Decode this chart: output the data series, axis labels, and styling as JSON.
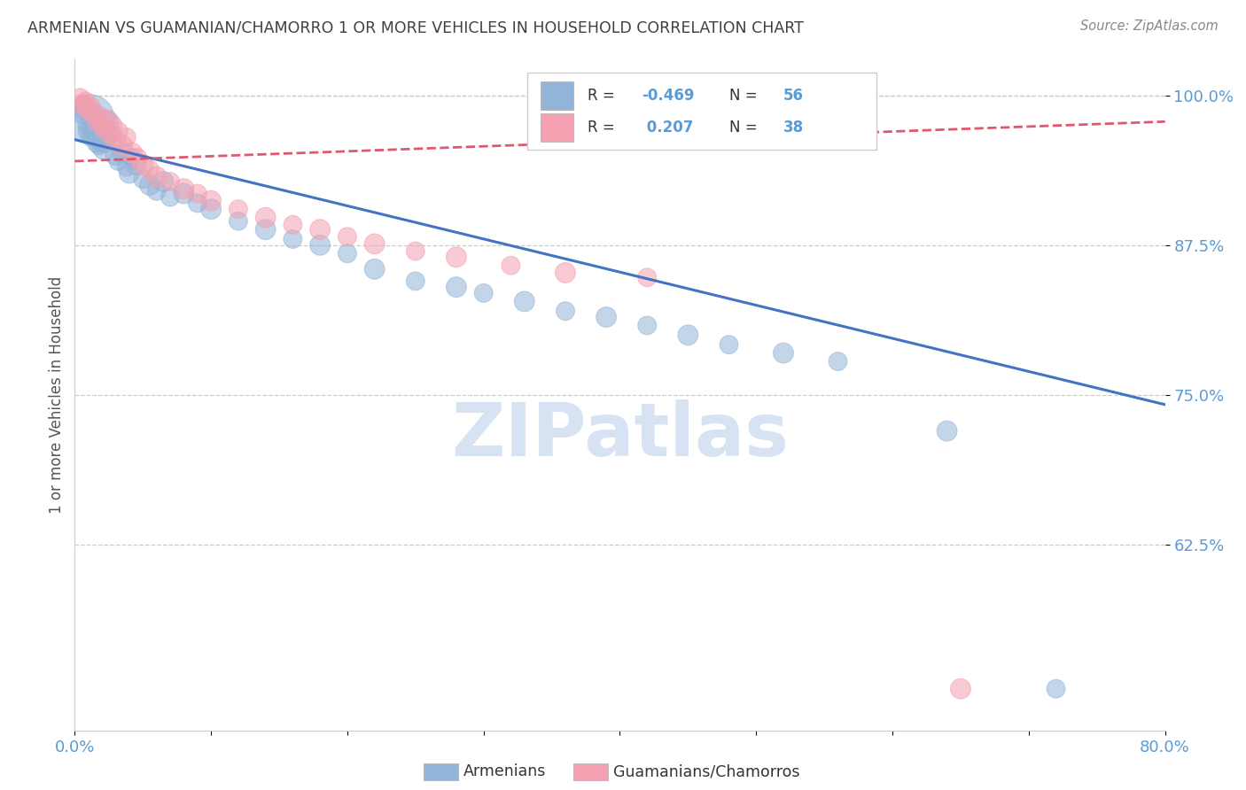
{
  "title": "ARMENIAN VS GUAMANIAN/CHAMORRO 1 OR MORE VEHICLES IN HOUSEHOLD CORRELATION CHART",
  "source": "Source: ZipAtlas.com",
  "ylabel": "1 or more Vehicles in Household",
  "xlim": [
    0.0,
    0.8
  ],
  "ylim": [
    0.47,
    1.03
  ],
  "ytick_positions": [
    0.625,
    0.75,
    0.875,
    1.0
  ],
  "ytick_labels": [
    "62.5%",
    "75.0%",
    "87.5%",
    "100.0%"
  ],
  "xtick_positions": [
    0.0,
    0.1,
    0.2,
    0.3,
    0.4,
    0.5,
    0.6,
    0.7,
    0.8
  ],
  "xtick_labels": [
    "0.0%",
    "",
    "",
    "",
    "",
    "",
    "",
    "",
    "80.0%"
  ],
  "armenian_R": -0.469,
  "armenian_N": 56,
  "guamanian_R": 0.207,
  "guamanian_N": 38,
  "armenian_color": "#92b4d8",
  "guamanian_color": "#f4a0b0",
  "armenian_line_color": "#4472c4",
  "guamanian_line_color": "#e05870",
  "title_color": "#404040",
  "axis_color": "#5b9bd5",
  "watermark_color": "#d0dff0",
  "arm_line_x0": 0.0,
  "arm_line_y0": 0.963,
  "arm_line_x1": 0.8,
  "arm_line_y1": 0.742,
  "gua_line_x0": 0.0,
  "gua_line_y0": 0.945,
  "gua_line_x1": 0.8,
  "gua_line_y1": 0.978,
  "armenian_scatter_x": [
    0.003,
    0.005,
    0.007,
    0.008,
    0.009,
    0.01,
    0.011,
    0.012,
    0.013,
    0.014,
    0.015,
    0.016,
    0.017,
    0.018,
    0.019,
    0.02,
    0.021,
    0.022,
    0.023,
    0.024,
    0.025,
    0.027,
    0.03,
    0.032,
    0.035,
    0.038,
    0.04,
    0.042,
    0.045,
    0.05,
    0.055,
    0.06,
    0.065,
    0.07,
    0.08,
    0.09,
    0.1,
    0.12,
    0.14,
    0.16,
    0.18,
    0.2,
    0.22,
    0.25,
    0.28,
    0.3,
    0.33,
    0.36,
    0.39,
    0.42,
    0.45,
    0.48,
    0.52,
    0.56,
    0.64,
    0.72
  ],
  "armenian_scatter_y": [
    0.99,
    0.985,
    0.992,
    0.988,
    0.975,
    0.97,
    0.98,
    0.965,
    0.972,
    0.968,
    0.982,
    0.96,
    0.975,
    0.958,
    0.962,
    0.97,
    0.955,
    0.96,
    0.972,
    0.965,
    0.978,
    0.968,
    0.95,
    0.945,
    0.952,
    0.94,
    0.935,
    0.948,
    0.942,
    0.93,
    0.925,
    0.92,
    0.928,
    0.915,
    0.918,
    0.91,
    0.905,
    0.895,
    0.888,
    0.88,
    0.875,
    0.868,
    0.855,
    0.845,
    0.84,
    0.835,
    0.828,
    0.82,
    0.815,
    0.808,
    0.8,
    0.792,
    0.785,
    0.778,
    0.72,
    0.505
  ],
  "armenian_scatter_sizes": [
    25,
    30,
    25,
    30,
    25,
    30,
    180,
    25,
    30,
    25,
    30,
    25,
    30,
    25,
    30,
    25,
    30,
    25,
    30,
    25,
    30,
    25,
    30,
    25,
    30,
    25,
    30,
    25,
    30,
    25,
    30,
    25,
    30,
    25,
    30,
    25,
    30,
    25,
    30,
    25,
    30,
    25,
    30,
    25,
    30,
    25,
    30,
    25,
    30,
    25,
    30,
    25,
    30,
    25,
    30,
    25
  ],
  "guamanian_scatter_x": [
    0.004,
    0.006,
    0.008,
    0.01,
    0.012,
    0.014,
    0.016,
    0.018,
    0.02,
    0.022,
    0.024,
    0.026,
    0.028,
    0.03,
    0.032,
    0.035,
    0.038,
    0.042,
    0.046,
    0.05,
    0.055,
    0.06,
    0.07,
    0.08,
    0.09,
    0.1,
    0.12,
    0.14,
    0.16,
    0.18,
    0.2,
    0.22,
    0.25,
    0.28,
    0.32,
    0.36,
    0.42,
    0.65
  ],
  "guamanian_scatter_y": [
    0.998,
    0.992,
    0.995,
    0.988,
    0.99,
    0.985,
    0.978,
    0.982,
    0.975,
    0.972,
    0.98,
    0.968,
    0.975,
    0.962,
    0.97,
    0.958,
    0.965,
    0.952,
    0.948,
    0.942,
    0.938,
    0.932,
    0.928,
    0.922,
    0.918,
    0.912,
    0.905,
    0.898,
    0.892,
    0.888,
    0.882,
    0.876,
    0.87,
    0.865,
    0.858,
    0.852,
    0.848,
    0.505
  ],
  "guamanian_scatter_sizes": [
    25,
    30,
    25,
    30,
    25,
    30,
    25,
    30,
    25,
    30,
    25,
    30,
    25,
    30,
    25,
    30,
    25,
    30,
    25,
    30,
    25,
    30,
    25,
    30,
    25,
    30,
    25,
    30,
    25,
    30,
    25,
    30,
    25,
    30,
    25,
    30,
    25,
    30
  ],
  "leg_R1": "R = -0.469",
  "leg_N1": "N = 56",
  "leg_R2": "R =  0.207",
  "leg_N2": "N = 38"
}
